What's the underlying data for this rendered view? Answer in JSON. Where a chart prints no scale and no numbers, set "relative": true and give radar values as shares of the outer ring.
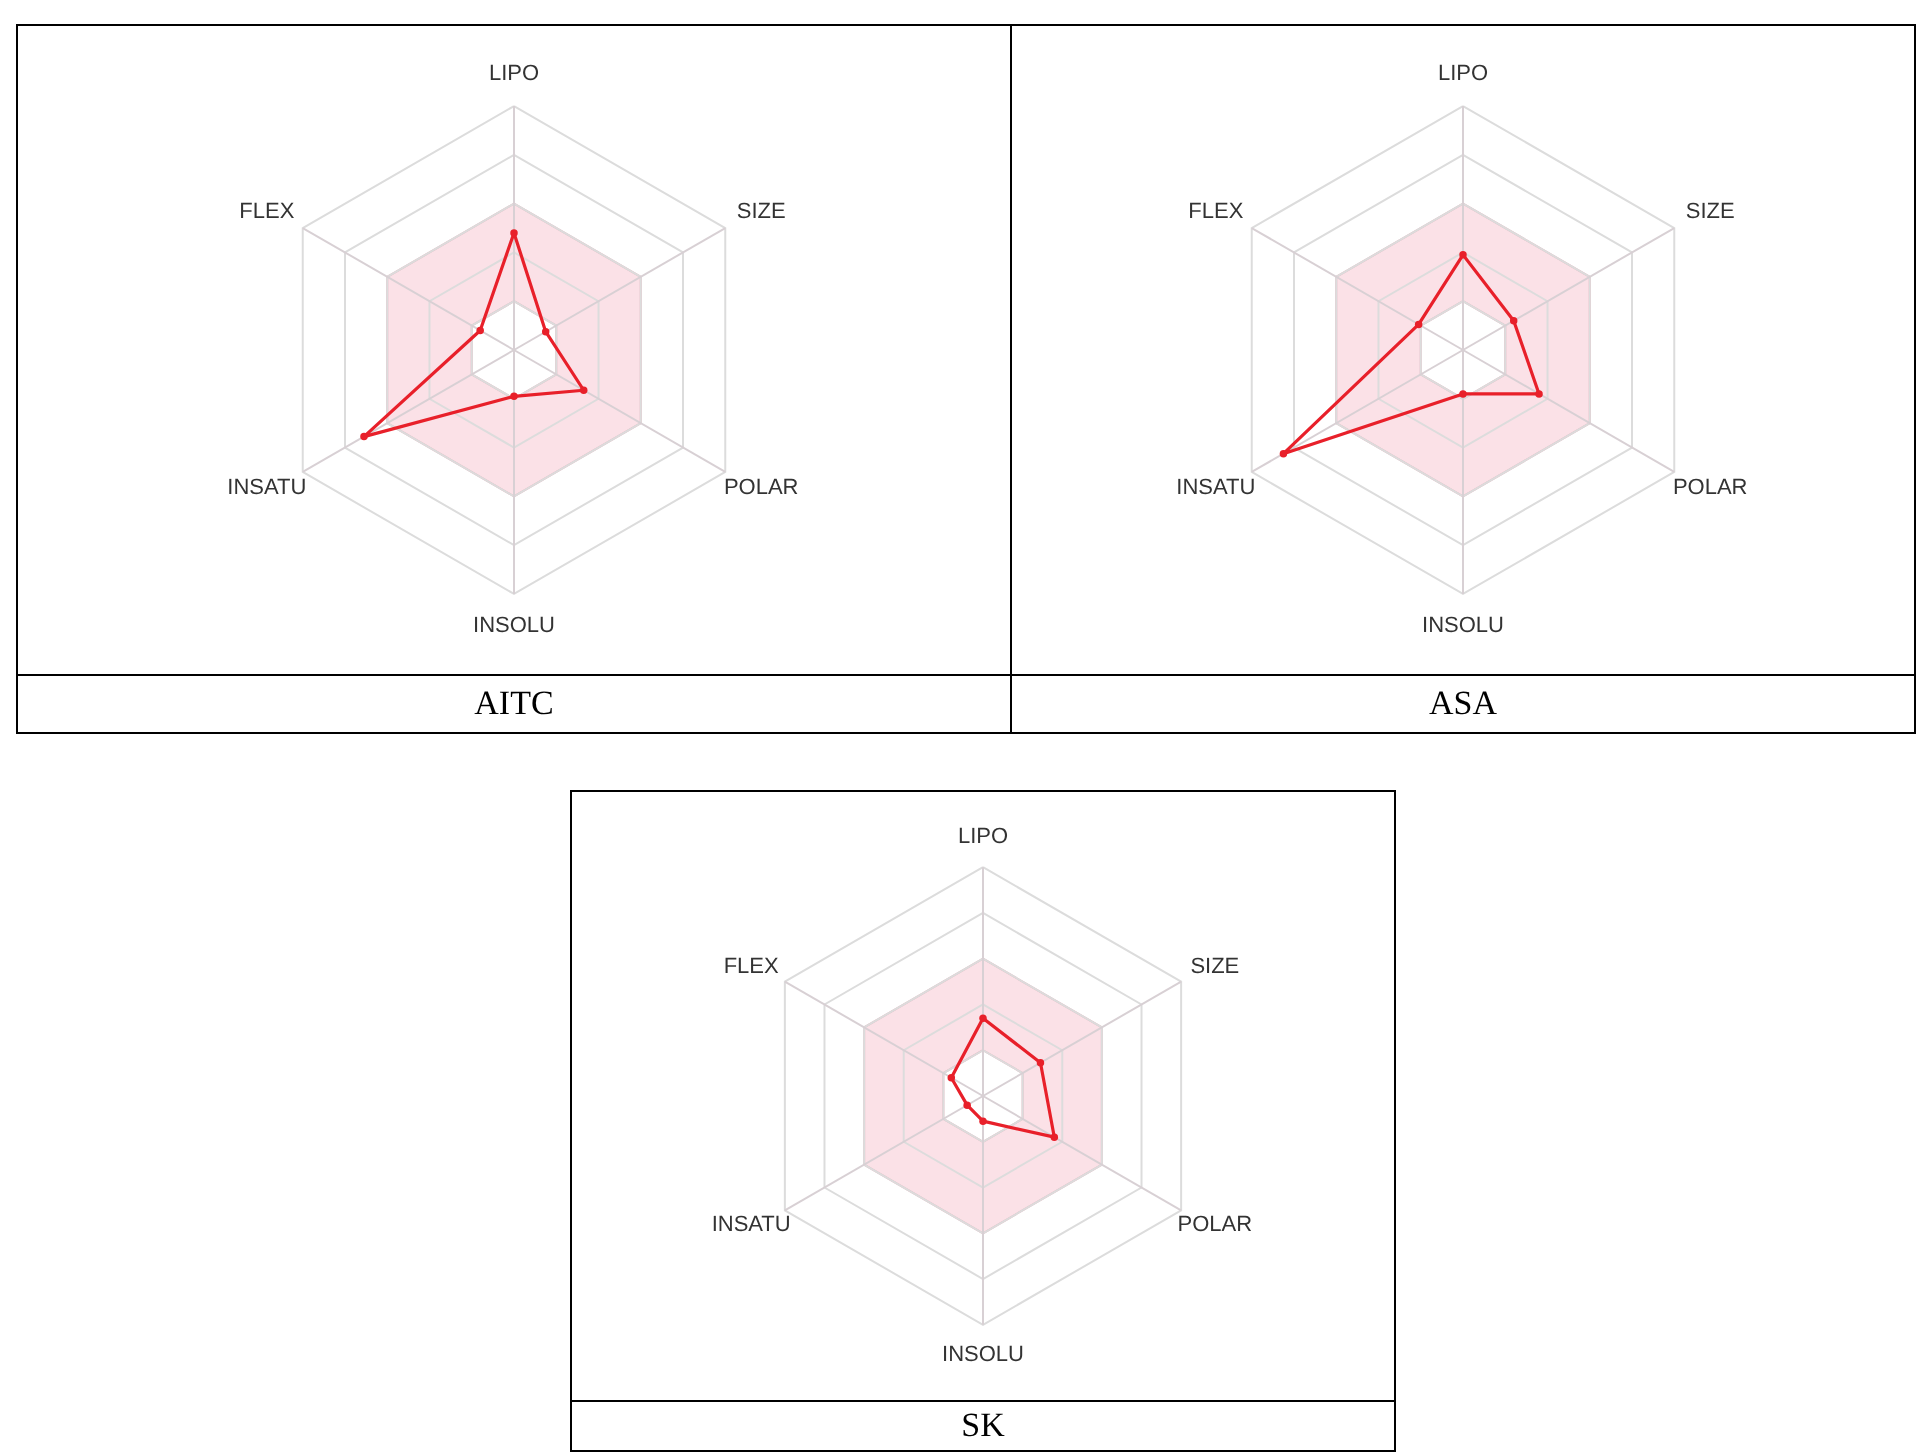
{
  "chart_data": [
    {
      "type": "radar",
      "title": "AITC",
      "categories": [
        "LIPO",
        "SIZE",
        "POLAR",
        "INSOLU",
        "INSATU",
        "FLEX"
      ],
      "relative": true,
      "grid": true,
      "marker": "circle",
      "bands": [
        {
          "axis": "y",
          "color": "#fbe1e7"
        }
      ],
      "series": [
        {
          "color": "#e8202a",
          "values": [
            0.48,
            0.15,
            0.33,
            0.19,
            0.71,
            0.16
          ]
        }
      ]
    },
    {
      "type": "radar",
      "title": "ASA",
      "categories": [
        "LIPO",
        "SIZE",
        "POLAR",
        "INSOLU",
        "INSATU",
        "FLEX"
      ],
      "relative": true,
      "grid": true,
      "marker": "circle",
      "bands": [
        {
          "axis": "y",
          "color": "#fbe1e7"
        }
      ],
      "series": [
        {
          "color": "#e8202a",
          "values": [
            0.39,
            0.24,
            0.36,
            0.18,
            0.85,
            0.21
          ]
        }
      ]
    },
    {
      "type": "radar",
      "title": "SK",
      "categories": [
        "LIPO",
        "SIZE",
        "POLAR",
        "INSOLU",
        "INSATU",
        "FLEX"
      ],
      "relative": true,
      "grid": true,
      "marker": "circle",
      "bands": [
        {
          "axis": "y",
          "color": "#fbe1e7"
        }
      ],
      "series": [
        {
          "color": "#e8202a",
          "values": [
            0.34,
            0.29,
            0.36,
            0.11,
            0.08,
            0.16
          ]
        }
      ]
    }
  ]
}
